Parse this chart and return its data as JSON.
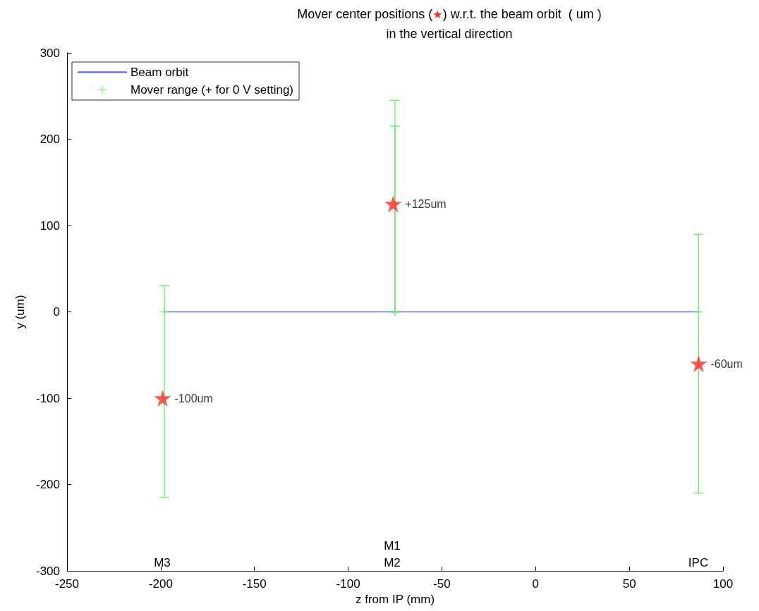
{
  "chart_data": {
    "type": "scatter",
    "title": "Mover center positions (★) w.r.t. the beam orbit  ( um )",
    "subtitle": "in the vertical direction",
    "xlabel": "z from IP (mm)",
    "ylabel": "y (um)",
    "xlim": [
      -250,
      100
    ],
    "xticks": [
      -250,
      -200,
      -150,
      -100,
      -50,
      0,
      50,
      100
    ],
    "ylim": [
      -300,
      300
    ],
    "yticks": [
      -300,
      -200,
      -100,
      0,
      100,
      200,
      300
    ],
    "legend": "top left",
    "series": [
      {
        "name": "Beam orbit",
        "type": "line",
        "color": "#6b6bff",
        "x": [
          -198,
          87
        ],
        "values": [
          0,
          0
        ],
        "marker": "none"
      },
      {
        "name": "Mover range (+ for 0 V setting)",
        "type": "scatter",
        "color": "#66ee66",
        "marker": "cross",
        "x": [
          -198,
          -75,
          -75,
          87
        ],
        "values": [
          0,
          0,
          0,
          0
        ],
        "errors": [
          [
            -215,
            30
          ],
          [
            0,
            215
          ],
          [
            0,
            245
          ],
          [
            -210,
            90
          ]
        ]
      },
      {
        "color": "#ff2a1f",
        "marker": "star",
        "x": [
          -199,
          -76,
          87
        ],
        "values": [
          -100,
          125,
          -60
        ],
        "value_labels": [
          "-100um",
          "+125um",
          "-60um"
        ]
      }
    ],
    "annotations": [
      "M3",
      "M1",
      "M2",
      "IPC"
    ]
  }
}
